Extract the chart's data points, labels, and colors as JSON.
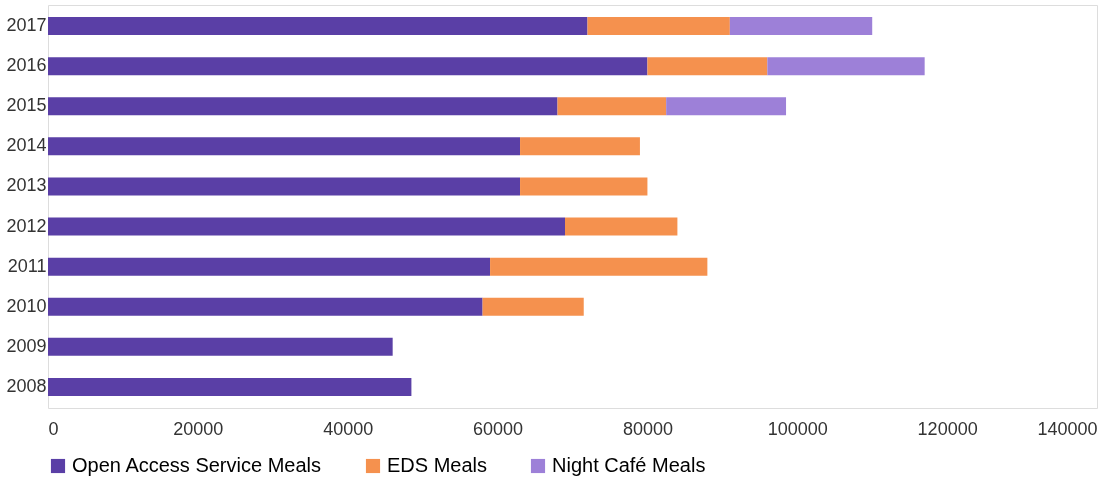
{
  "chart_data": {
    "type": "bar",
    "orientation": "horizontal",
    "stacked": true,
    "legend": "bottom",
    "grid": false,
    "categories": [
      "2017",
      "2016",
      "2015",
      "2014",
      "2013",
      "2012",
      "2011",
      "2010",
      "2009",
      "2008"
    ],
    "series": [
      {
        "name": "Open Access Service Meals",
        "color": "#5a3fa6",
        "values": [
          72000,
          80000,
          68000,
          63000,
          63000,
          69000,
          59000,
          58000,
          46000,
          48500
        ]
      },
      {
        "name": "EDS Meals",
        "color": "#f5914e",
        "values": [
          19000,
          16000,
          14500,
          16000,
          17000,
          15000,
          29000,
          13500,
          null,
          null
        ]
      },
      {
        "name": "Night Café Meals",
        "color": "#9d80d8",
        "values": [
          19000,
          21000,
          16000,
          null,
          null,
          null,
          null,
          null,
          null,
          null
        ]
      }
    ],
    "xlim": [
      0,
      140000
    ],
    "xticks": [
      0,
      20000,
      40000,
      60000,
      80000,
      100000,
      120000,
      140000
    ]
  }
}
